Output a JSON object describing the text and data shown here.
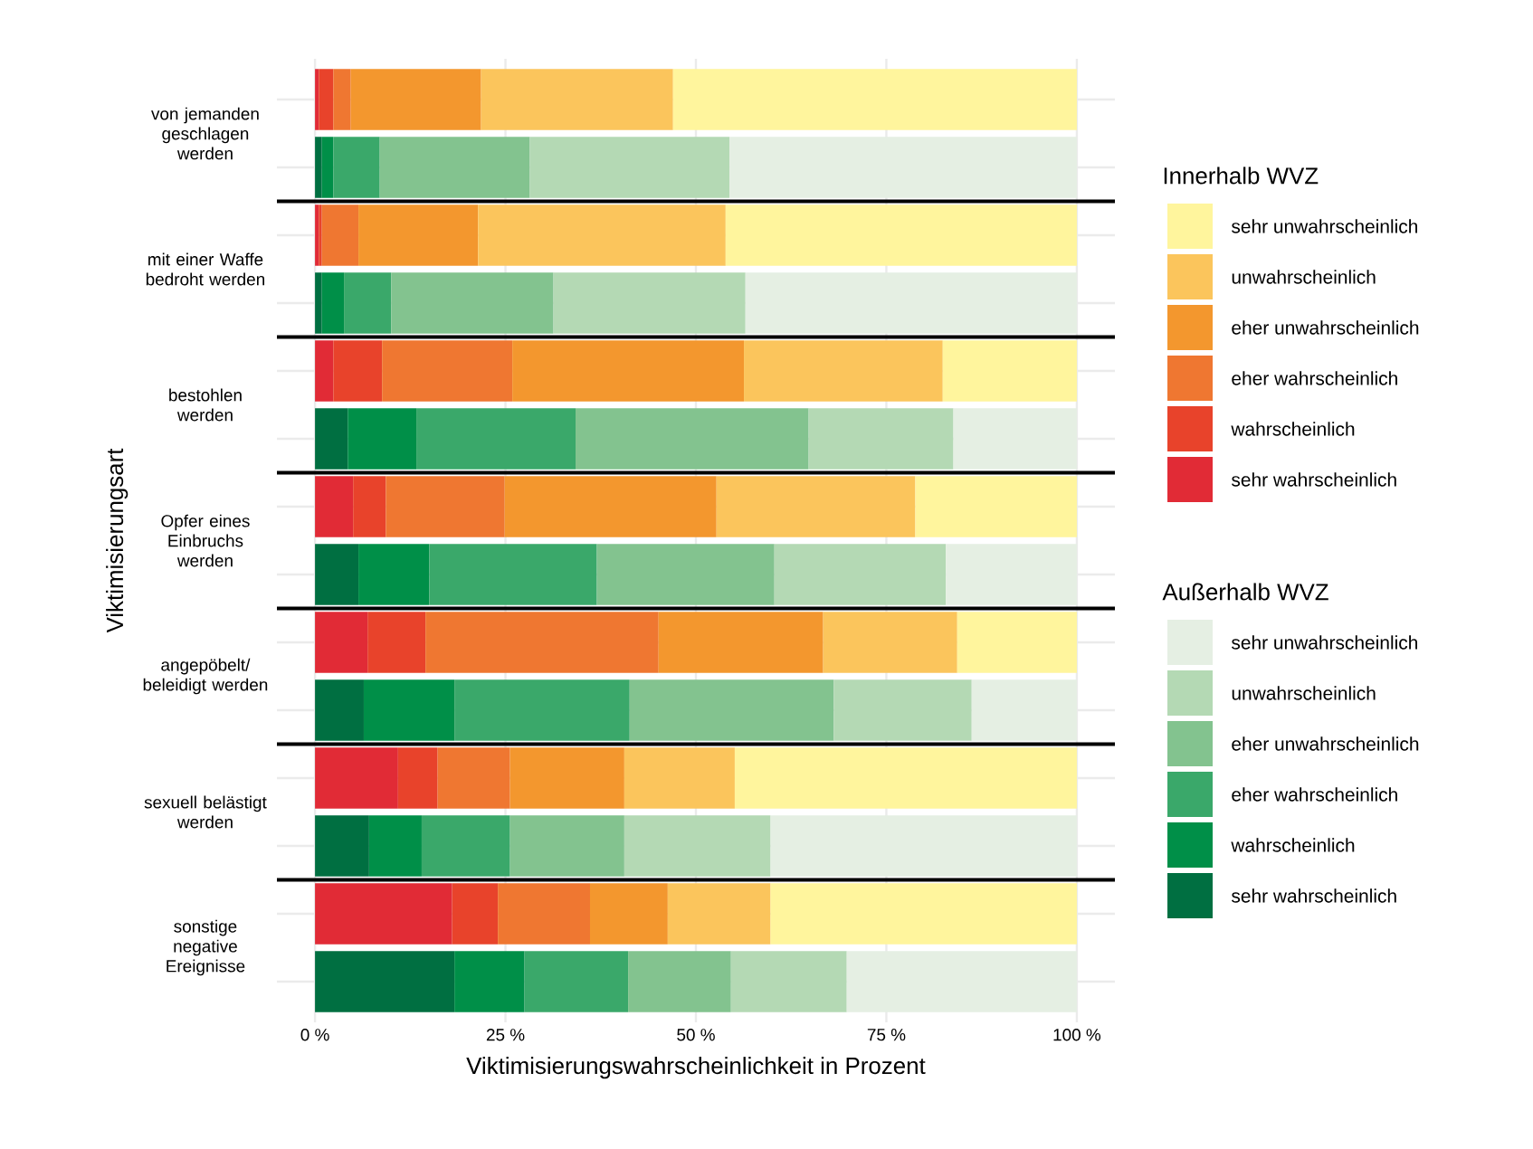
{
  "chart_data": {
    "type": "bar",
    "orientation": "horizontal",
    "stacked": true,
    "categories": [
      "von jemanden geschlagen werden",
      null,
      "mit einer Waffe bedroht werden",
      null,
      "bestohlen werden",
      null,
      "Opfer eines Einbruchs werden",
      null,
      "angepöbelt/ beleidigt werden",
      null,
      "sexuell belästigt werden",
      null,
      "sonstige negative Ereignisse",
      null
    ],
    "series": [
      {
        "name": "sehr wahrscheinlich",
        "color": "#e12b36",
        "values": [
          0.5,
          null,
          0.5,
          null,
          2.4,
          null,
          5.0,
          null,
          6.9,
          null,
          10.9,
          null,
          18.0,
          null
        ]
      },
      {
        "name": "wahrscheinlich",
        "color": "#e8432b",
        "values": [
          1.9,
          null,
          0.4,
          null,
          6.4,
          null,
          4.3,
          null,
          7.6,
          null,
          5.2,
          null,
          6.0,
          null
        ]
      },
      {
        "name": "eher wahrscheinlich",
        "color": "#ef7731",
        "values": [
          2.3,
          null,
          4.8,
          null,
          17.1,
          null,
          15.6,
          null,
          30.6,
          null,
          9.5,
          null,
          12.1,
          null
        ]
      },
      {
        "name": "eher unwahrscheinlich",
        "color": "#f3972e",
        "values": [
          17.1,
          null,
          15.7,
          null,
          30.4,
          null,
          27.8,
          null,
          21.6,
          null,
          15.0,
          null,
          10.2,
          null
        ]
      },
      {
        "name": "unwahrscheinlich",
        "color": "#fbc55c",
        "values": [
          25.2,
          null,
          32.5,
          null,
          26.1,
          null,
          26.1,
          null,
          17.6,
          null,
          14.5,
          null,
          13.5,
          null
        ]
      },
      {
        "name": "sehr unwahrscheinlich",
        "color": "#fff59d",
        "values": [
          53.0,
          null,
          46.1,
          null,
          17.6,
          null,
          21.2,
          null,
          15.7,
          null,
          44.9,
          null,
          40.2,
          null
        ]
      },
      {
        "name": "sehr wahrscheinlich",
        "color": "#006f41",
        "values": [
          null,
          0.9,
          null,
          0.9,
          null,
          4.3,
          null,
          5.7,
          null,
          6.4,
          null,
          7.1,
          null,
          18.3
        ]
      },
      {
        "name": "wahrscheinlich",
        "color": "#008f48",
        "values": [
          null,
          1.5,
          null,
          2.9,
          null,
          9.0,
          null,
          9.3,
          null,
          11.9,
          null,
          6.9,
          null,
          9.2
        ]
      },
      {
        "name": "eher wahrscheinlich",
        "color": "#3aa86a",
        "values": [
          null,
          6.1,
          null,
          6.2,
          null,
          20.9,
          null,
          22.0,
          null,
          23.0,
          null,
          11.6,
          null,
          13.6
        ]
      },
      {
        "name": "eher unwahrscheinlich",
        "color": "#83c38f",
        "values": [
          null,
          19.7,
          null,
          21.3,
          null,
          30.6,
          null,
          23.3,
          null,
          26.8,
          null,
          15.0,
          null,
          13.5
        ]
      },
      {
        "name": "unwahrscheinlich",
        "color": "#b4d9b4",
        "values": [
          null,
          26.2,
          null,
          25.2,
          null,
          19.0,
          null,
          22.5,
          null,
          18.1,
          null,
          19.2,
          null,
          15.2
        ]
      },
      {
        "name": "sehr unwahrscheinlich",
        "color": "#e5efe3",
        "values": [
          null,
          45.6,
          null,
          43.5,
          null,
          16.2,
          null,
          17.2,
          null,
          13.8,
          null,
          40.2,
          null,
          30.2
        ]
      }
    ],
    "xlim": [
      -5,
      105
    ],
    "xticks": [
      {
        "value": 0,
        "label": "0 %"
      },
      {
        "value": 25,
        "label": "25 %"
      },
      {
        "value": 50,
        "label": "50 %"
      },
      {
        "value": 75,
        "label": "75 %"
      },
      {
        "value": 100,
        "label": "100 %"
      }
    ],
    "xlabel": "Viktimisierungswahrscheinlichkeit in Prozent",
    "ylabel": "Viktimisierungsart",
    "legend_title": [
      "Innerhalb WVZ",
      "Außerhalb WVZ"
    ],
    "legend": "right",
    "grid": true
  }
}
